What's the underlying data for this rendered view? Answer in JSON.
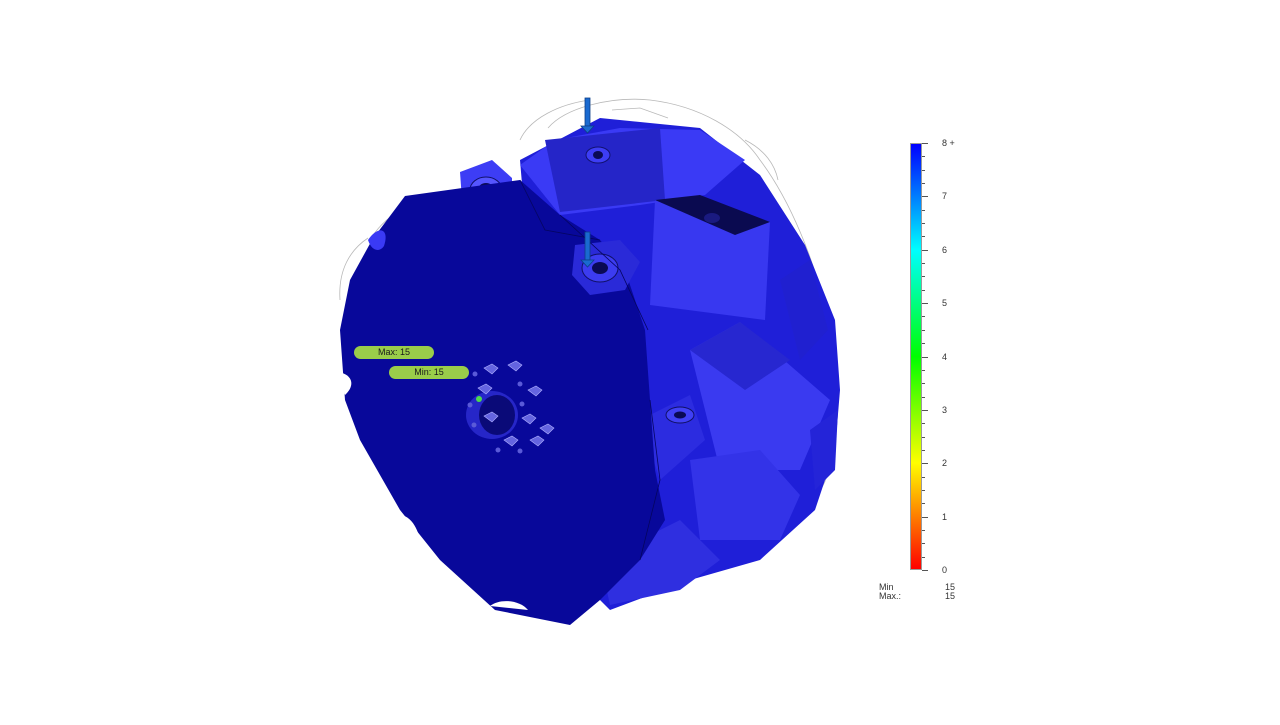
{
  "probes": {
    "max_label": "Max: 15",
    "min_label": "Min: 15"
  },
  "legend": {
    "ticks": [
      {
        "value": 8,
        "label": "8 +"
      },
      {
        "value": 7,
        "label": "7"
      },
      {
        "value": 6,
        "label": "6"
      },
      {
        "value": 5,
        "label": "5"
      },
      {
        "value": 4,
        "label": "4"
      },
      {
        "value": 3,
        "label": "3"
      },
      {
        "value": 2,
        "label": "2"
      },
      {
        "value": 1,
        "label": "1"
      },
      {
        "value": 0,
        "label": "0"
      }
    ],
    "range": [
      0,
      8
    ],
    "colors": [
      "#ff0000",
      "#ff7f00",
      "#ffff00",
      "#7fff00",
      "#00ff00",
      "#00ff7f",
      "#00ffff",
      "#007fff",
      "#0000ff"
    ]
  },
  "stats": {
    "min_label": "Min",
    "min_value": "15",
    "max_label": "Max.:",
    "max_value": "15"
  },
  "model": {
    "body_color": "#0a0aa0",
    "face_color": "#3535f0",
    "highlight_color": "#4a4aff",
    "load_arrow_color": "#1a6ad0"
  }
}
